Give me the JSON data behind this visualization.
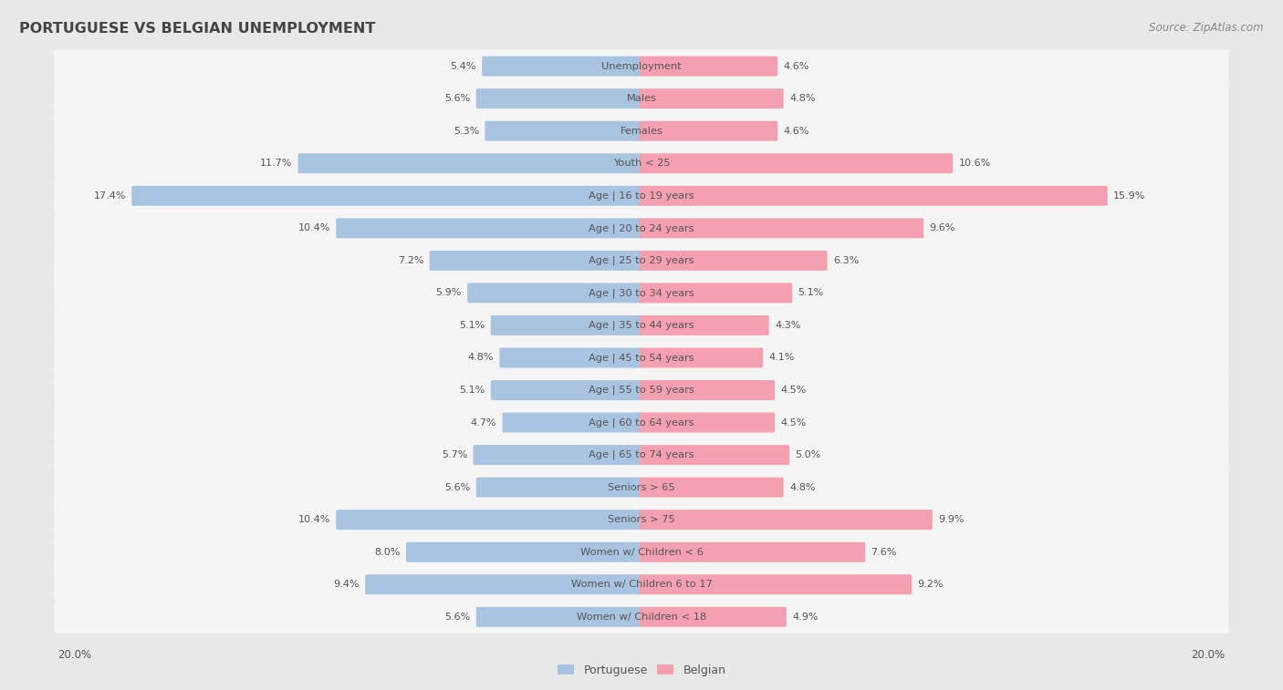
{
  "title": "PORTUGUESE VS BELGIAN UNEMPLOYMENT",
  "source": "Source: ZipAtlas.com",
  "categories": [
    "Unemployment",
    "Males",
    "Females",
    "Youth < 25",
    "Age | 16 to 19 years",
    "Age | 20 to 24 years",
    "Age | 25 to 29 years",
    "Age | 30 to 34 years",
    "Age | 35 to 44 years",
    "Age | 45 to 54 years",
    "Age | 55 to 59 years",
    "Age | 60 to 64 years",
    "Age | 65 to 74 years",
    "Seniors > 65",
    "Seniors > 75",
    "Women w/ Children < 6",
    "Women w/ Children 6 to 17",
    "Women w/ Children < 18"
  ],
  "portuguese": [
    5.4,
    5.6,
    5.3,
    11.7,
    17.4,
    10.4,
    7.2,
    5.9,
    5.1,
    4.8,
    5.1,
    4.7,
    5.7,
    5.6,
    10.4,
    8.0,
    9.4,
    5.6
  ],
  "belgian": [
    4.6,
    4.8,
    4.6,
    10.6,
    15.9,
    9.6,
    6.3,
    5.1,
    4.3,
    4.1,
    4.5,
    4.5,
    5.0,
    4.8,
    9.9,
    7.6,
    9.2,
    4.9
  ],
  "portuguese_color": "#a8c4e0",
  "belgian_color": "#f4a0b0",
  "background_color": "#e8e8e8",
  "row_bg_color": "#f5f5f5",
  "axis_max": 20.0,
  "legend_portuguese": "Portuguese",
  "legend_belgian": "Belgian",
  "title_color": "#444444",
  "source_color": "#888888",
  "label_color": "#555555",
  "value_color": "#555555"
}
